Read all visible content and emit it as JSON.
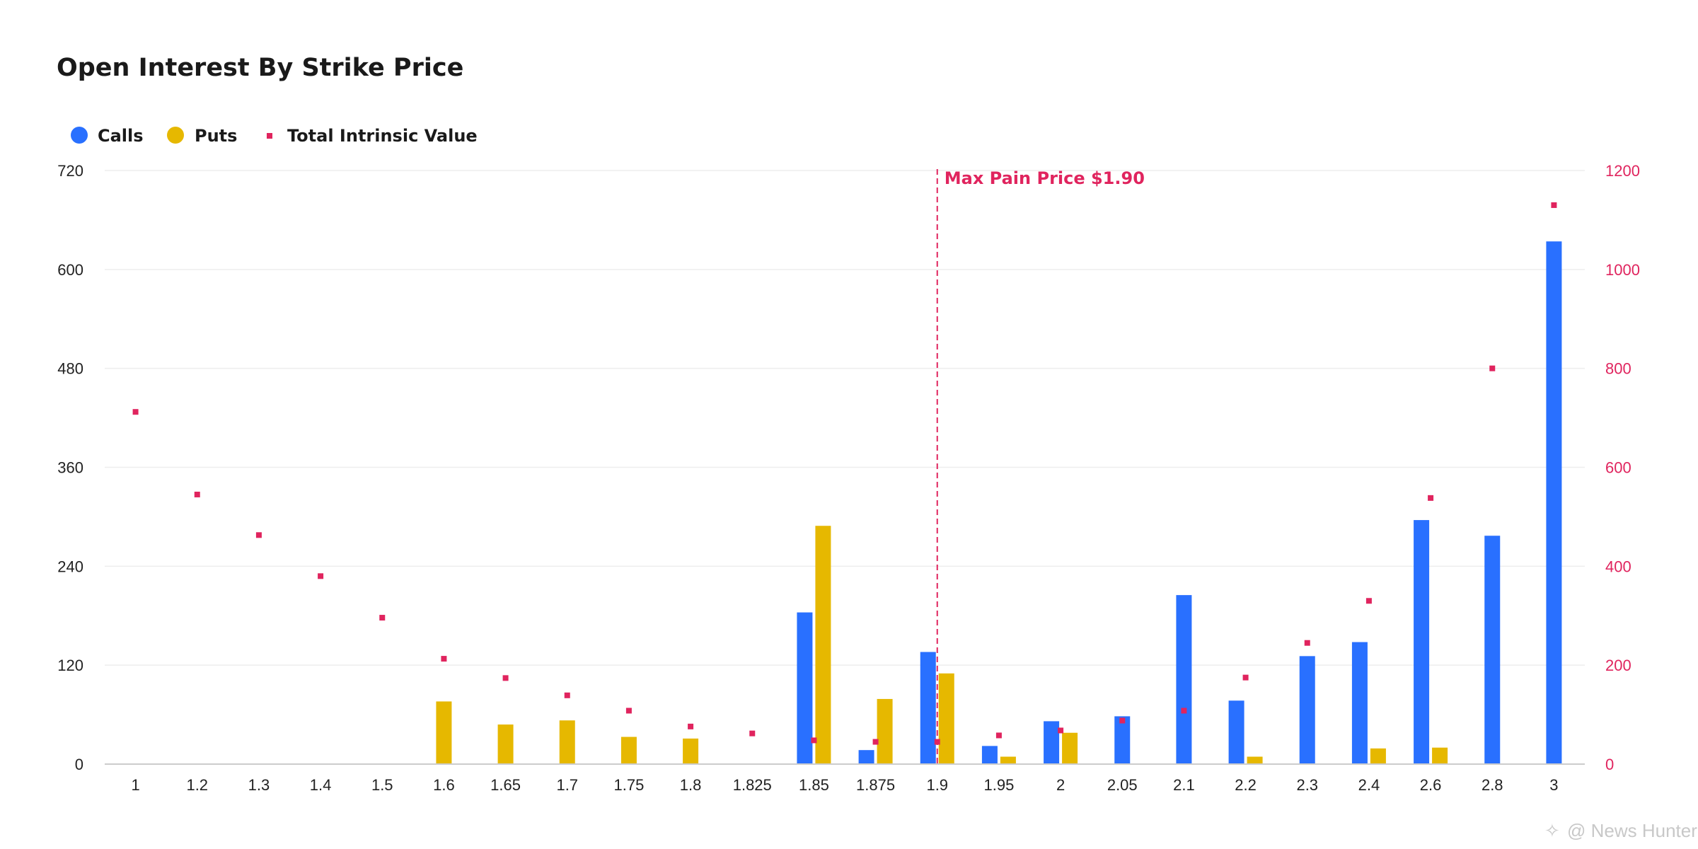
{
  "colors": {
    "calls": "#2970ff",
    "puts": "#e6b800",
    "intrinsic": "#e0245e",
    "grid": "#eeeeee",
    "axis": "#cccccc"
  },
  "watermark": "@ News Hunter",
  "chart_data": {
    "type": "bar",
    "title": "Open Interest By Strike Price",
    "categories": [
      "1",
      "1.2",
      "1.3",
      "1.4",
      "1.5",
      "1.6",
      "1.65",
      "1.7",
      "1.75",
      "1.8",
      "1.825",
      "1.85",
      "1.875",
      "1.9",
      "1.95",
      "2",
      "2.05",
      "2.1",
      "2.2",
      "2.3",
      "2.4",
      "2.6",
      "2.8",
      "3"
    ],
    "series": [
      {
        "name": "Calls",
        "type": "bar",
        "axis": "left",
        "values": [
          0,
          0,
          0,
          0,
          0,
          0,
          0,
          0,
          0,
          0,
          0,
          184,
          17,
          136,
          22,
          52,
          58,
          205,
          77,
          131,
          148,
          296,
          277,
          634
        ]
      },
      {
        "name": "Puts",
        "type": "bar",
        "axis": "left",
        "values": [
          0,
          0,
          0,
          0,
          0,
          76,
          48,
          53,
          33,
          31,
          0,
          289,
          79,
          110,
          9,
          38,
          0,
          0,
          9,
          0,
          19,
          20,
          0,
          0
        ]
      },
      {
        "name": "Total Intrinsic Value",
        "type": "scatter",
        "axis": "right",
        "values": [
          712,
          545,
          463,
          380,
          296,
          213,
          174,
          139,
          108,
          76,
          62,
          48,
          45,
          45,
          58,
          68,
          88,
          108,
          175,
          245,
          330,
          538,
          800,
          1130
        ]
      }
    ],
    "y_left": {
      "min": 0,
      "max": 720,
      "ticks": [
        0,
        120,
        240,
        360,
        480,
        600,
        720
      ]
    },
    "y_right": {
      "min": 0,
      "max": 1200,
      "ticks": [
        0,
        200,
        400,
        600,
        800,
        1000,
        1200
      ]
    },
    "grid": true,
    "legend_position": "top-left",
    "annotation": {
      "label": "Max Pain Price $1.90",
      "category": "1.9"
    }
  }
}
